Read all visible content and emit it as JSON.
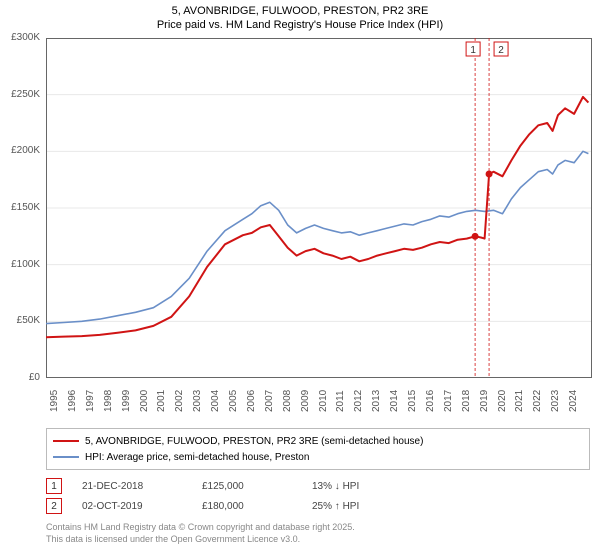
{
  "title_line1": "5, AVONBRIDGE, FULWOOD, PRESTON, PR2 3RE",
  "title_line2": "Price paid vs. HM Land Registry's House Price Index (HPI)",
  "chart": {
    "type": "line",
    "x_start": 1995,
    "x_end": 2025.5,
    "x_ticks": [
      1995,
      1996,
      1997,
      1998,
      1999,
      2000,
      2001,
      2002,
      2003,
      2004,
      2005,
      2006,
      2007,
      2008,
      2009,
      2010,
      2011,
      2012,
      2013,
      2014,
      2015,
      2016,
      2017,
      2018,
      2019,
      2020,
      2021,
      2022,
      2023,
      2024
    ],
    "y_min": 0,
    "y_max": 300000,
    "y_ticks": [
      0,
      50000,
      100000,
      150000,
      200000,
      250000,
      300000
    ],
    "y_tick_labels": [
      "£0",
      "£50K",
      "£100K",
      "£150K",
      "£200K",
      "£250K",
      "£300K"
    ],
    "grid_color": "#e8e8e8",
    "background": "#ffffff",
    "axis_color": "#666666",
    "tick_fontsize": 10,
    "series_red": {
      "label": "5, AVONBRIDGE, FULWOOD, PRESTON, PR2 3RE (semi-detached house)",
      "color": "#d01414",
      "width": 2,
      "data": [
        [
          1995,
          36000
        ],
        [
          1996,
          36500
        ],
        [
          1997,
          37000
        ],
        [
          1998,
          38000
        ],
        [
          1999,
          40000
        ],
        [
          2000,
          42000
        ],
        [
          2001,
          46000
        ],
        [
          2002,
          54000
        ],
        [
          2003,
          72000
        ],
        [
          2004,
          98000
        ],
        [
          2005,
          118000
        ],
        [
          2006,
          126000
        ],
        [
          2006.5,
          128000
        ],
        [
          2007,
          133000
        ],
        [
          2007.5,
          135000
        ],
        [
          2008,
          125000
        ],
        [
          2008.5,
          115000
        ],
        [
          2009,
          108000
        ],
        [
          2009.5,
          112000
        ],
        [
          2010,
          114000
        ],
        [
          2010.5,
          110000
        ],
        [
          2011,
          108000
        ],
        [
          2011.5,
          105000
        ],
        [
          2012,
          107000
        ],
        [
          2012.5,
          103000
        ],
        [
          2013,
          105000
        ],
        [
          2013.5,
          108000
        ],
        [
          2014,
          110000
        ],
        [
          2014.5,
          112000
        ],
        [
          2015,
          114000
        ],
        [
          2015.5,
          113000
        ],
        [
          2016,
          115000
        ],
        [
          2016.5,
          118000
        ],
        [
          2017,
          120000
        ],
        [
          2017.5,
          119000
        ],
        [
          2018,
          122000
        ],
        [
          2018.5,
          123000
        ],
        [
          2018.97,
          125000
        ],
        [
          2019.3,
          124000
        ],
        [
          2019.5,
          123000
        ],
        [
          2019.75,
          180000
        ],
        [
          2020,
          182000
        ],
        [
          2020.5,
          178000
        ],
        [
          2021,
          192000
        ],
        [
          2021.5,
          205000
        ],
        [
          2022,
          215000
        ],
        [
          2022.5,
          223000
        ],
        [
          2023,
          225000
        ],
        [
          2023.3,
          218000
        ],
        [
          2023.6,
          232000
        ],
        [
          2024,
          238000
        ],
        [
          2024.5,
          233000
        ],
        [
          2025,
          248000
        ],
        [
          2025.3,
          243000
        ]
      ]
    },
    "series_blue": {
      "label": "HPI: Average price, semi-detached house, Preston",
      "color": "#6a8fc8",
      "width": 1.6,
      "data": [
        [
          1995,
          48000
        ],
        [
          1996,
          49000
        ],
        [
          1997,
          50000
        ],
        [
          1998,
          52000
        ],
        [
          1999,
          55000
        ],
        [
          2000,
          58000
        ],
        [
          2001,
          62000
        ],
        [
          2002,
          72000
        ],
        [
          2003,
          88000
        ],
        [
          2004,
          112000
        ],
        [
          2005,
          130000
        ],
        [
          2006,
          140000
        ],
        [
          2006.5,
          145000
        ],
        [
          2007,
          152000
        ],
        [
          2007.5,
          155000
        ],
        [
          2008,
          148000
        ],
        [
          2008.5,
          135000
        ],
        [
          2009,
          128000
        ],
        [
          2009.5,
          132000
        ],
        [
          2010,
          135000
        ],
        [
          2010.5,
          132000
        ],
        [
          2011,
          130000
        ],
        [
          2011.5,
          128000
        ],
        [
          2012,
          129000
        ],
        [
          2012.5,
          126000
        ],
        [
          2013,
          128000
        ],
        [
          2013.5,
          130000
        ],
        [
          2014,
          132000
        ],
        [
          2014.5,
          134000
        ],
        [
          2015,
          136000
        ],
        [
          2015.5,
          135000
        ],
        [
          2016,
          138000
        ],
        [
          2016.5,
          140000
        ],
        [
          2017,
          143000
        ],
        [
          2017.5,
          142000
        ],
        [
          2018,
          145000
        ],
        [
          2018.5,
          147000
        ],
        [
          2019,
          148000
        ],
        [
          2019.5,
          147000
        ],
        [
          2020,
          148000
        ],
        [
          2020.5,
          145000
        ],
        [
          2021,
          158000
        ],
        [
          2021.5,
          168000
        ],
        [
          2022,
          175000
        ],
        [
          2022.5,
          182000
        ],
        [
          2023,
          184000
        ],
        [
          2023.3,
          180000
        ],
        [
          2023.6,
          188000
        ],
        [
          2024,
          192000
        ],
        [
          2024.5,
          190000
        ],
        [
          2025,
          200000
        ],
        [
          2025.3,
          198000
        ]
      ]
    },
    "markers": [
      {
        "n": "1",
        "x": 2018.97,
        "y": 125000,
        "date": "21-DEC-2018",
        "price": "£125,000",
        "pct": "13% ↓ HPI",
        "box_color": "#d01414",
        "vline_color": "#d01414"
      },
      {
        "n": "2",
        "x": 2019.75,
        "y": 180000,
        "date": "02-OCT-2019",
        "price": "£180,000",
        "pct": "25% ↑ HPI",
        "box_color": "#d01414",
        "vline_color": "#d01414"
      }
    ]
  },
  "credit_line1": "Contains HM Land Registry data © Crown copyright and database right 2025.",
  "credit_line2": "This data is licensed under the Open Government Licence v3.0."
}
